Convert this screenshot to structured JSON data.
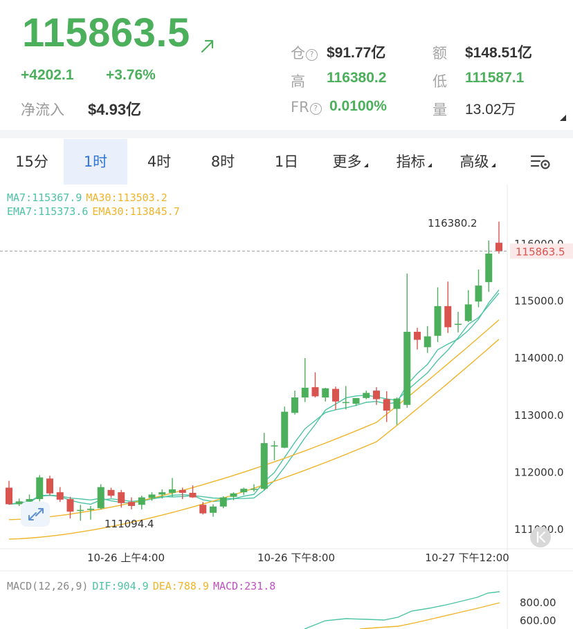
{
  "ticker": {
    "price": "115863.5",
    "change_abs": "+4202.1",
    "change_pct": "+3.76%",
    "netflow_label": "净流入",
    "netflow_value": "$4.93亿",
    "colors": {
      "up": "#4caf5c",
      "down": "#d9534f",
      "muted": "#a5a5a5"
    }
  },
  "stats": {
    "oi_label": "仓",
    "oi_value": "$91.77亿",
    "turnover_label": "额",
    "turnover_value": "$148.51亿",
    "high_label": "高",
    "high_value": "116380.2",
    "low_label": "低",
    "low_value": "111587.1",
    "fr_label": "FR",
    "fr_value": "0.0100%",
    "volume_label": "量",
    "volume_value": "13.02万"
  },
  "tabs": [
    {
      "label": "15分",
      "active": false
    },
    {
      "label": "1时",
      "active": true
    },
    {
      "label": "4时",
      "active": false
    },
    {
      "label": "8时",
      "active": false
    },
    {
      "label": "1日",
      "active": false
    },
    {
      "label": "更多",
      "active": false,
      "dropdown": true
    },
    {
      "label": "指标",
      "active": false,
      "dropdown": true
    },
    {
      "label": "高级",
      "active": false,
      "dropdown": true
    }
  ],
  "indicators": {
    "ma7": "MA7:115367.9",
    "ma30": "MA30:113503.2",
    "ema7": "EMA7:115373.6",
    "ema30": "EMA30:113845.7",
    "colors": {
      "ma7": "#4cc4a4",
      "ma30": "#f0b429",
      "ema7": "#4cc4a4",
      "ema30": "#f0b429"
    }
  },
  "macd": {
    "label": "MACD(12,26,9)",
    "dif": "DIF:904.9",
    "dea": "DEA:788.9",
    "macd": "MACD:231.8",
    "colors": {
      "dif": "#4cc4a4",
      "dea": "#f0b429",
      "macd": "#c14fc1"
    },
    "y_ticks": [
      "800.00",
      "600.00"
    ]
  },
  "chart_data": {
    "type": "candlestick",
    "interval": "1时",
    "y_ticks": [
      "116000.0",
      "115000.0",
      "114000.0",
      "113000.0",
      "112000.0",
      "111000.0"
    ],
    "x_ticks": [
      "10-26 上午4:00",
      "10-26 下午8:00",
      "10-27 下午12:00"
    ],
    "last_price_label": "115863.5",
    "high_label": "116380.2",
    "low_label": "111094.4",
    "candles": [
      [
        111720,
        111840,
        111420,
        111430
      ],
      [
        111430,
        111530,
        111400,
        111480
      ],
      [
        111480,
        111600,
        111430,
        111520
      ],
      [
        111520,
        111940,
        111480,
        111900
      ],
      [
        111880,
        111930,
        111580,
        111620
      ],
      [
        111640,
        111730,
        111470,
        111510
      ],
      [
        111520,
        111560,
        111180,
        111300
      ],
      [
        111330,
        111420,
        111140,
        111330
      ],
      [
        111330,
        111400,
        111160,
        111350
      ],
      [
        111360,
        111780,
        111340,
        111730
      ],
      [
        111680,
        111720,
        111540,
        111580
      ],
      [
        111640,
        111680,
        111370,
        111450
      ],
      [
        111470,
        111550,
        111340,
        111400
      ],
      [
        111420,
        111580,
        111340,
        111550
      ],
      [
        111540,
        111640,
        111490,
        111600
      ],
      [
        111600,
        111690,
        111530,
        111640
      ],
      [
        111630,
        111890,
        111560,
        111690
      ],
      [
        111680,
        111720,
        111520,
        111630
      ],
      [
        111630,
        111760,
        111540,
        111550
      ],
      [
        111420,
        111470,
        111250,
        111270
      ],
      [
        111280,
        111430,
        111210,
        111390
      ],
      [
        111390,
        111570,
        111360,
        111550
      ],
      [
        111560,
        111640,
        111500,
        111620
      ],
      [
        111640,
        111720,
        111590,
        111700
      ],
      [
        111700,
        111780,
        111650,
        111700
      ],
      [
        111700,
        112680,
        111670,
        112500
      ],
      [
        112460,
        112540,
        112200,
        112460
      ],
      [
        112420,
        113140,
        112410,
        113050
      ],
      [
        113030,
        113420,
        113000,
        113300
      ],
      [
        113300,
        113990,
        113220,
        113470
      ],
      [
        113480,
        113740,
        113300,
        113320
      ],
      [
        113300,
        113470,
        113230,
        113460
      ],
      [
        113450,
        113490,
        113080,
        113230
      ],
      [
        113220,
        113500,
        113090,
        113220
      ],
      [
        113190,
        113280,
        113150,
        113290
      ],
      [
        113290,
        113420,
        113270,
        113380
      ],
      [
        113420,
        113480,
        113170,
        113270
      ],
      [
        113270,
        113410,
        112870,
        113070
      ],
      [
        113100,
        113300,
        112820,
        113280
      ],
      [
        113170,
        115470,
        113120,
        114450
      ],
      [
        114450,
        114520,
        114140,
        114310
      ],
      [
        114180,
        114550,
        114080,
        114370
      ],
      [
        114380,
        115230,
        114270,
        114900
      ],
      [
        114900,
        115330,
        114430,
        114530
      ],
      [
        114580,
        114800,
        114440,
        114590
      ],
      [
        114640,
        115180,
        114620,
        114930
      ],
      [
        114980,
        115540,
        114880,
        115260
      ],
      [
        115320,
        116050,
        115150,
        115820
      ],
      [
        116010,
        116380,
        115820,
        115860
      ]
    ]
  }
}
